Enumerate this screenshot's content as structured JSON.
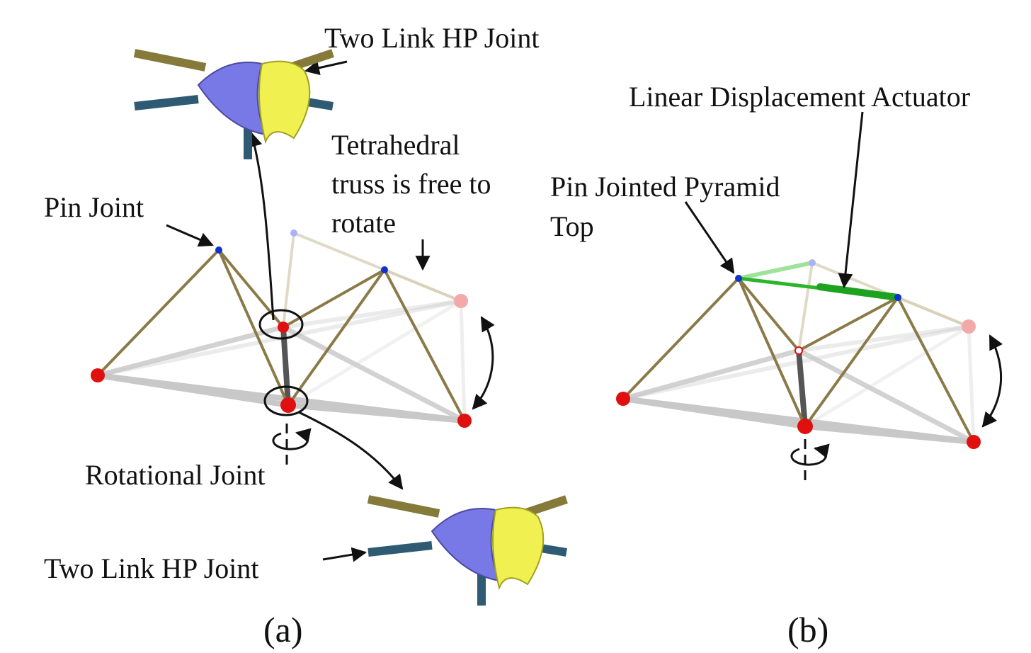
{
  "panel_a": {
    "label": "(a)",
    "top_joint_label": "Two Link HP Joint",
    "truss_note": [
      "Tetrahedral",
      "truss is free to",
      "rotate"
    ],
    "pin_joint_label": "Pin Joint",
    "rotational_joint_label": "Rotational Joint",
    "bottom_joint_label": "Two Link HP Joint"
  },
  "panel_b": {
    "label": "(b)",
    "actuator_label": "Linear Displacement Actuator",
    "pyramid_top_label": [
      "Pin Jointed Pyramid",
      "Top"
    ]
  }
}
